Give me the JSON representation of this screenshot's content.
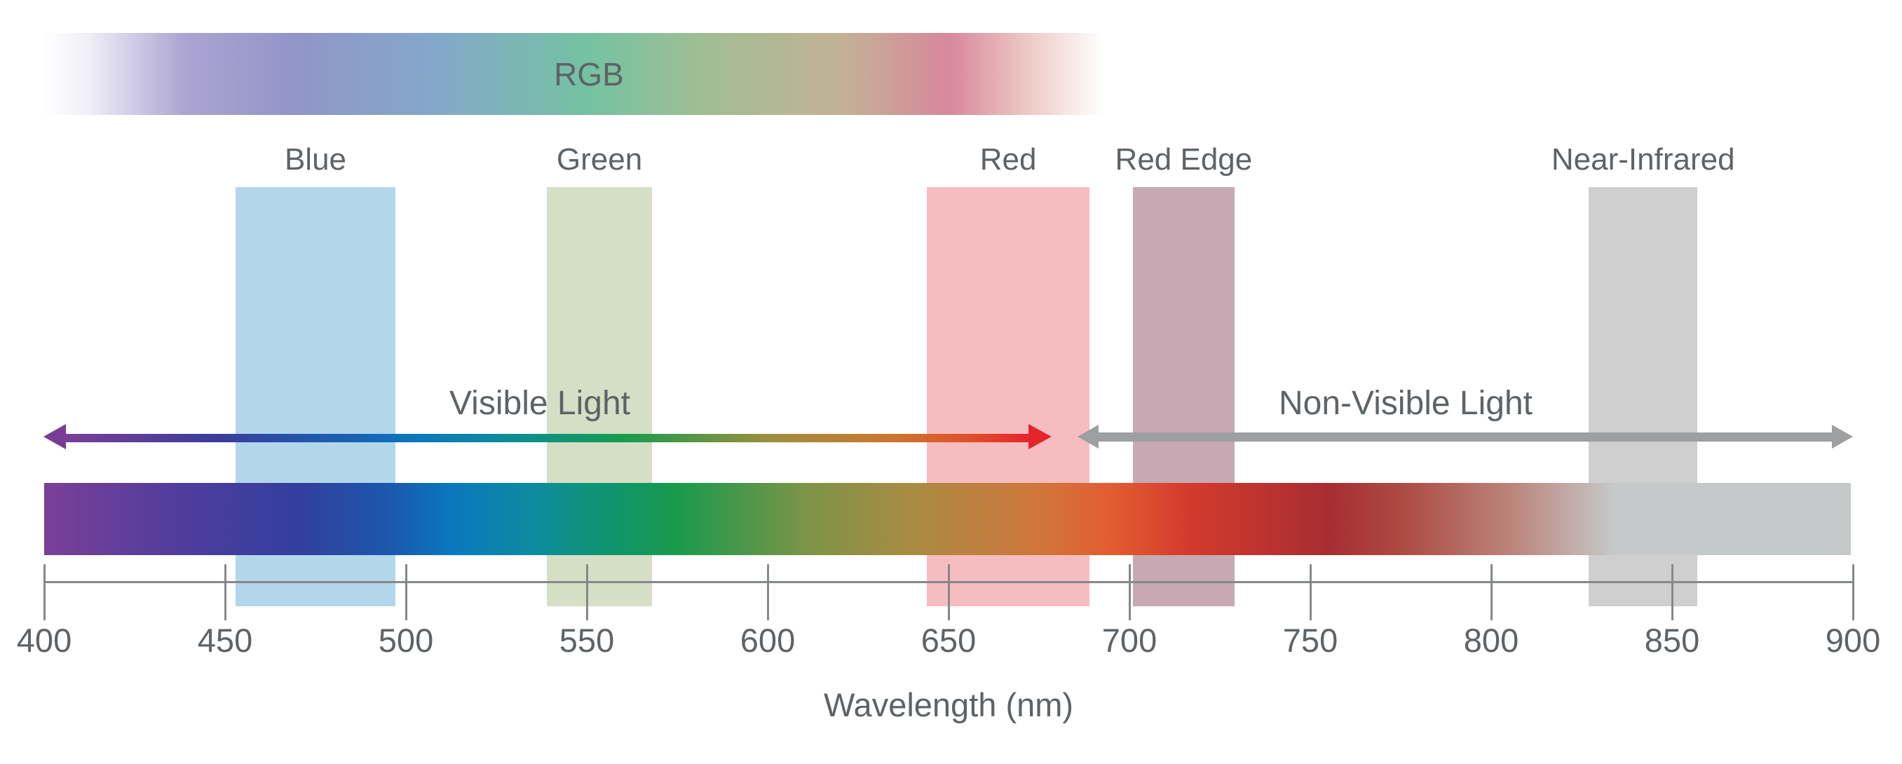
{
  "colors": {
    "background": "#FFFFFF",
    "text": "#5D6367",
    "axis": "#84888A"
  },
  "rgb_strip": {
    "label": "RGB",
    "gradient": [
      [
        "#FFFFFF",
        0
      ],
      [
        "#F2F0F7",
        4
      ],
      [
        "#ACA4D2",
        13
      ],
      [
        "#9295C8",
        23
      ],
      [
        "#83A8CA",
        36
      ],
      [
        "#74C2A2",
        50
      ],
      [
        "#9FBE94",
        60
      ],
      [
        "#C3B295",
        73
      ],
      [
        "#D8879B",
        83
      ],
      [
        "#ECC8C3",
        90
      ],
      [
        "#FFFFFF",
        97
      ],
      [
        "#FFFFFF",
        100
      ]
    ]
  },
  "bands": [
    {
      "id": "blue",
      "label": "Blue",
      "color": "#B2D7EB",
      "range_nm": [
        453,
        497
      ]
    },
    {
      "id": "green",
      "label": "Green",
      "color": "#D5DFC5",
      "range_nm": [
        539,
        568
      ]
    },
    {
      "id": "red",
      "label": "Red",
      "color": "#F6BDC1",
      "range_nm": [
        644,
        689
      ]
    },
    {
      "id": "red-edge",
      "label": "Red Edge",
      "color": "#C7A9B3",
      "range_nm": [
        701,
        729
      ]
    },
    {
      "id": "near-infrared",
      "label": "Near-Infrared",
      "color": "#CFCFCF",
      "range_nm": [
        827,
        857
      ]
    }
  ],
  "arrows": {
    "visible": {
      "label": "Visible Light",
      "range_nm": [
        400,
        678
      ],
      "head_left_color": "#7A3B96",
      "head_right_color": "#E6242B",
      "gradient": [
        [
          "#7B3F98",
          0
        ],
        [
          "#3A3D9B",
          16
        ],
        [
          "#1A5FB2",
          29
        ],
        [
          "#0E74BE",
          36
        ],
        [
          "#0D8B9E",
          45
        ],
        [
          "#159C4D",
          58
        ],
        [
          "#9C8F3E",
          73
        ],
        [
          "#CE752F",
          86
        ],
        [
          "#E0502B",
          94
        ],
        [
          "#E6242B",
          100
        ]
      ]
    },
    "non_visible": {
      "label": "Non-Visible Light",
      "range_nm": [
        687,
        900
      ],
      "color": "#9E9FA0"
    }
  },
  "spectrum_bar": {
    "range_nm": [
      400,
      900
    ],
    "gradient": [
      [
        "#7B3F98",
        0
      ],
      [
        "#523D9B",
        7
      ],
      [
        "#333E9E",
        14
      ],
      [
        "#1C57AC",
        19
      ],
      [
        "#0A77BE",
        22.5
      ],
      [
        "#0D8BA0",
        27
      ],
      [
        "#0E9470",
        31
      ],
      [
        "#199A4C",
        35
      ],
      [
        "#7A9448",
        42
      ],
      [
        "#A98B42",
        48
      ],
      [
        "#D0763C",
        55
      ],
      [
        "#E25D31",
        59
      ],
      [
        "#D23A2C",
        63.5
      ],
      [
        "#A82D32",
        71
      ],
      [
        "#AC4A42",
        75
      ],
      [
        "#BB8278",
        81
      ],
      [
        "#C6C9CA",
        87
      ],
      [
        "#C6C9CA",
        100
      ]
    ]
  },
  "axis": {
    "min": 400,
    "max": 900,
    "step": 50,
    "tick_labels": [
      "400",
      "450",
      "500",
      "550",
      "600",
      "650",
      "700",
      "750",
      "800",
      "850",
      "900"
    ],
    "title": "Wavelength (nm)"
  }
}
